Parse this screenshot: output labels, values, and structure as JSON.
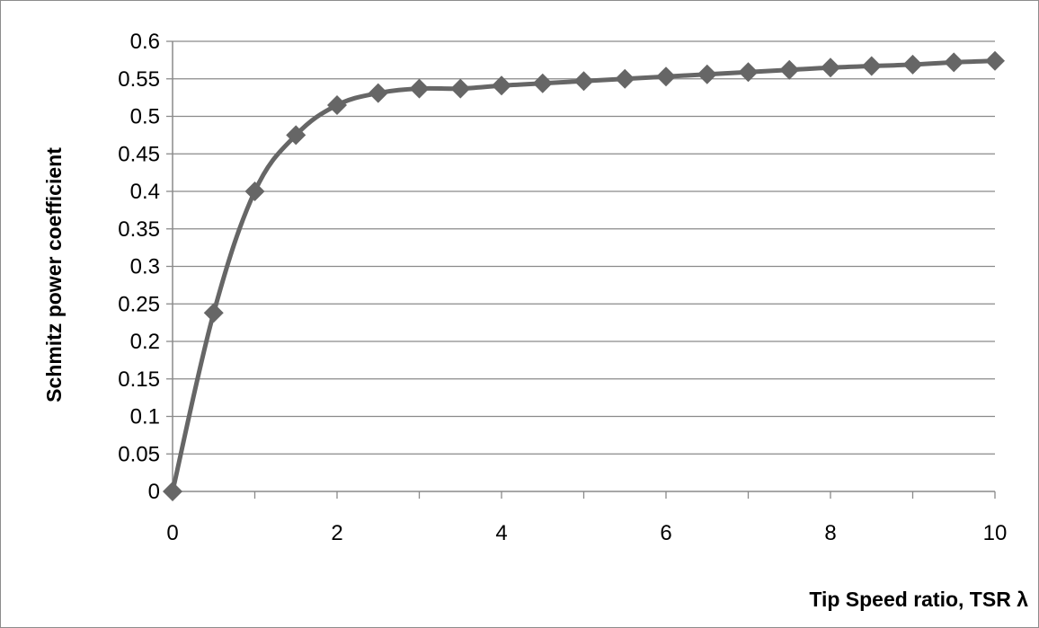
{
  "chart_data": {
    "type": "line",
    "title": "",
    "xlabel": "Tip Speed ratio, TSR λ",
    "ylabel": "Schmitz  power coefficient",
    "xlim": [
      0,
      10
    ],
    "ylim": [
      0,
      0.6
    ],
    "x_ticks": [
      "0",
      "2",
      "4",
      "6",
      "8",
      "10"
    ],
    "y_ticks": [
      "0",
      "0.05",
      "0.1",
      "0.15",
      "0.2",
      "0.25",
      "0.3",
      "0.35",
      "0.4",
      "0.45",
      "0.5",
      "0.55",
      "0.6"
    ],
    "grid": "horizontal",
    "legend": "none",
    "marker": "diamond",
    "smooth": true,
    "line_color": "#666666",
    "series": [
      {
        "x": [
          0,
          0.5,
          1,
          1.5,
          2,
          2.5,
          3,
          3.5,
          4,
          4.5,
          5,
          5.5,
          6,
          6.5,
          7,
          7.5,
          8,
          8.5,
          9,
          9.5,
          10
        ],
        "y": [
          0,
          0.238,
          0.4,
          0.475,
          0.515,
          0.531,
          0.537,
          0.537,
          0.541,
          0.544,
          0.547,
          0.55,
          0.553,
          0.556,
          0.559,
          0.562,
          0.565,
          0.567,
          0.569,
          0.572,
          0.574
        ]
      }
    ]
  }
}
